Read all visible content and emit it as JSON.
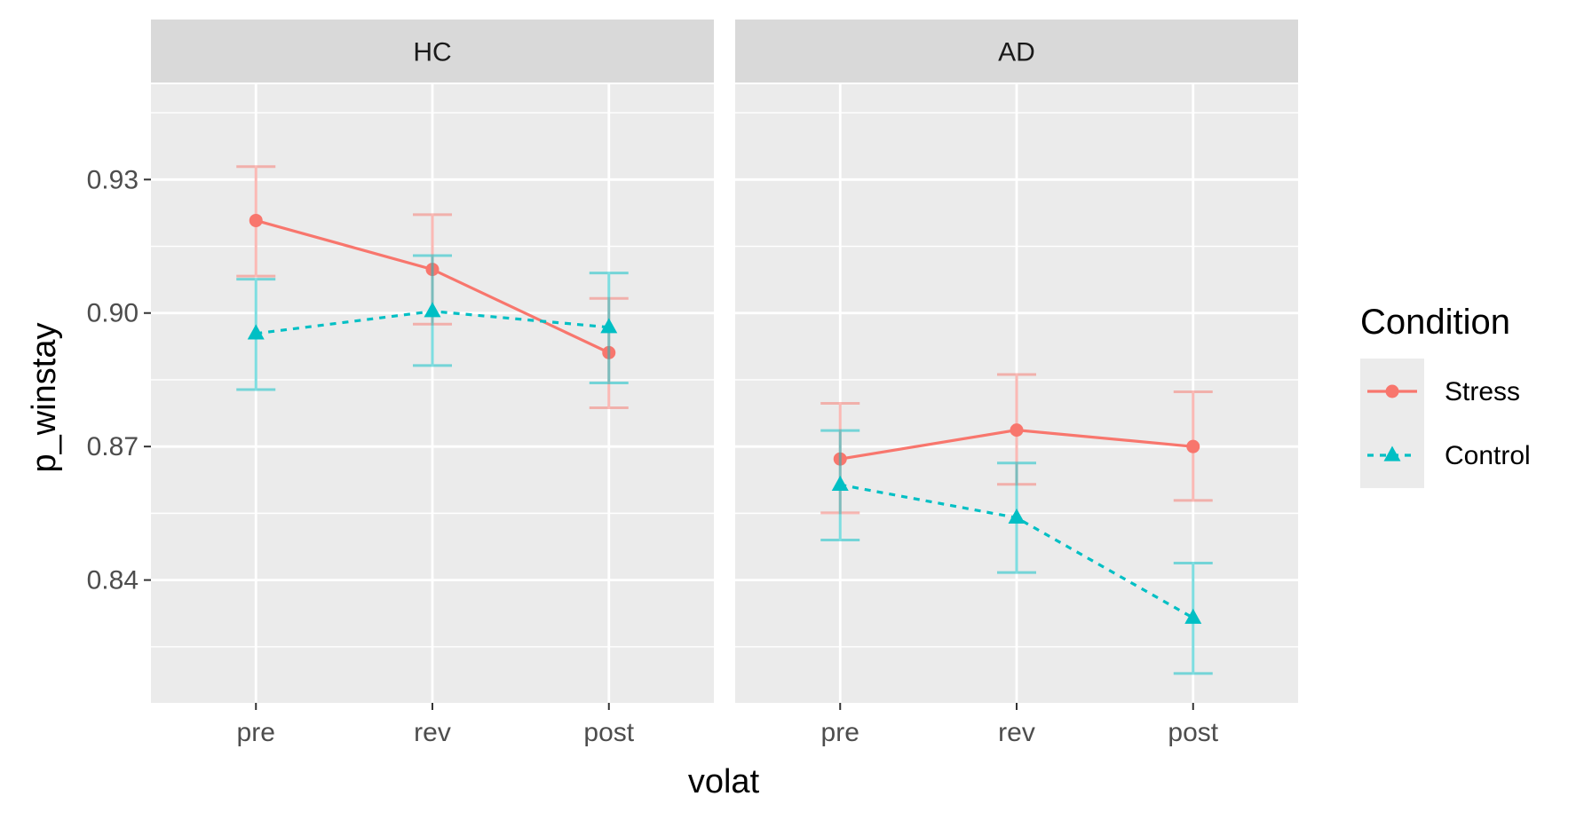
{
  "chart_data": {
    "type": "line",
    "xlabel": "volat",
    "ylabel": "p_winstay",
    "categories": [
      "pre",
      "rev",
      "post"
    ],
    "ylim": [
      0.8124,
      0.9514
    ],
    "y_ticks": [
      0.84,
      0.87,
      0.9,
      0.93
    ],
    "y_tick_labels": [
      "0.84",
      "0.87",
      "0.90",
      "0.93"
    ],
    "grid": true,
    "legend": {
      "title": "Condition",
      "placement": "right",
      "entries": [
        {
          "name": "Stress",
          "color": "#F8766D",
          "shape": "circle",
          "linetype": "solid"
        },
        {
          "name": "Control",
          "color": "#00BFC4",
          "shape": "triangle",
          "linetype": "dashed"
        }
      ]
    },
    "panels": [
      {
        "label": "HC",
        "series": [
          {
            "name": "Stress",
            "values": [
              0.9208,
              0.9098,
              0.8911
            ],
            "lower": [
              0.9083,
              0.8975,
              0.8787
            ],
            "upper": [
              0.9329,
              0.9221,
              0.9033
            ]
          },
          {
            "name": "Control",
            "values": [
              0.8954,
              0.9004,
              0.8968
            ],
            "lower": [
              0.8828,
              0.8882,
              0.8843
            ],
            "upper": [
              0.9076,
              0.9129,
              0.909
            ]
          }
        ]
      },
      {
        "label": "AD",
        "series": [
          {
            "name": "Stress",
            "values": [
              0.8672,
              0.8737,
              0.87
            ],
            "lower": [
              0.8551,
              0.8615,
              0.8579
            ],
            "upper": [
              0.8797,
              0.8862,
              0.8823
            ]
          },
          {
            "name": "Control",
            "values": [
              0.8614,
              0.854,
              0.8315
            ],
            "lower": [
              0.849,
              0.8417,
              0.819
            ],
            "upper": [
              0.8736,
              0.8663,
              0.8438
            ]
          }
        ]
      }
    ]
  }
}
